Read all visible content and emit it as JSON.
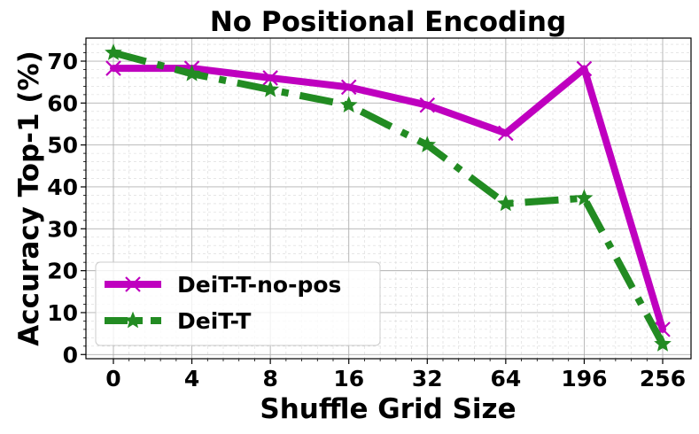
{
  "chart_data": {
    "type": "line",
    "title": "No Positional Encoding",
    "xlabel": "Shuffle Grid Size",
    "ylabel": "Accuracy Top-1 (%)",
    "categories": [
      "0",
      "4",
      "8",
      "16",
      "32",
      "64",
      "196",
      "256"
    ],
    "yticks": [
      "0",
      "10",
      "20",
      "30",
      "40",
      "50",
      "60",
      "70"
    ],
    "ylim": [
      -1,
      75.5
    ],
    "grid": true,
    "legend_position": "lower-left",
    "series": [
      {
        "name": "DeiT-T-no-pos",
        "values": [
          68.3,
          68.3,
          66.0,
          63.8,
          59.5,
          52.8,
          68.2,
          6.0
        ],
        "color": "#bf00bf",
        "linestyle": "solid",
        "marker": "x"
      },
      {
        "name": "DeiT-T",
        "values": [
          72.0,
          67.0,
          63.2,
          59.5,
          50.0,
          36.0,
          37.3,
          2.5
        ],
        "color": "#228b22",
        "linestyle": "dashdot",
        "marker": "star"
      }
    ]
  }
}
